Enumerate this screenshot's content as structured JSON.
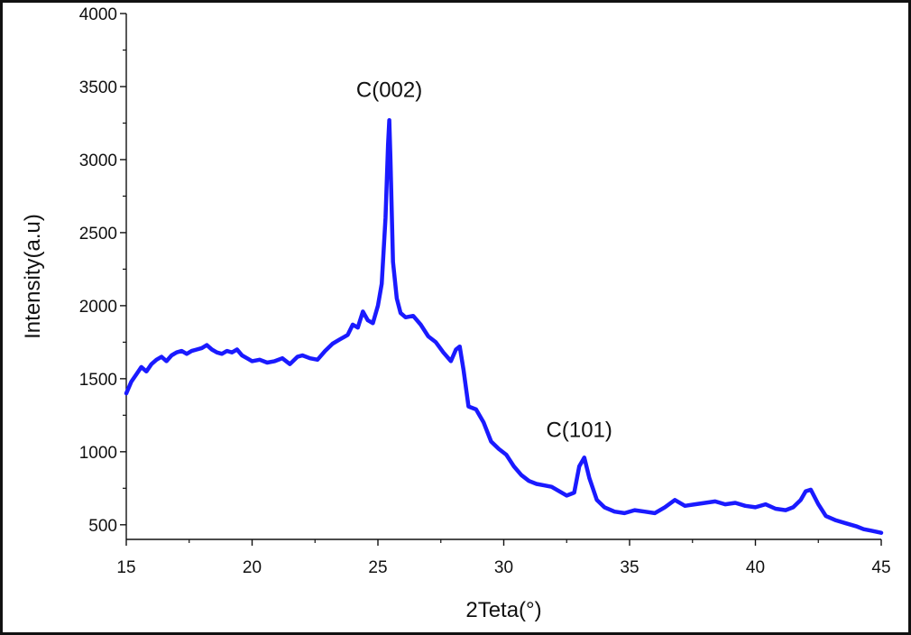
{
  "chart_data": {
    "type": "line",
    "title": "",
    "xlabel": "2Teta(°)",
    "ylabel": "Intensity(a.u)",
    "xlim": [
      15,
      45
    ],
    "ylim": [
      400,
      4000
    ],
    "x_ticks": [
      15,
      20,
      25,
      30,
      35,
      40,
      45
    ],
    "y_ticks": [
      500,
      1000,
      1500,
      2000,
      2500,
      3000,
      3500,
      4000
    ],
    "grid": false,
    "line_color": "#1a1aff",
    "series": [
      {
        "x": [
          15.0,
          15.2,
          15.4,
          15.6,
          15.8,
          16.0,
          16.2,
          16.4,
          16.6,
          16.8,
          17.0,
          17.2,
          17.4,
          17.6,
          17.8,
          18.0,
          18.2,
          18.4,
          18.6,
          18.8,
          19.0,
          19.2,
          19.4,
          19.6,
          19.8,
          20.0,
          20.3,
          20.6,
          20.9,
          21.2,
          21.5,
          21.8,
          22.0,
          22.3,
          22.6,
          22.9,
          23.2,
          23.5,
          23.8,
          24.0,
          24.2,
          24.4,
          24.6,
          24.8,
          25.0,
          25.15,
          25.3,
          25.4,
          25.45,
          25.5,
          25.6,
          25.75,
          25.9,
          26.1,
          26.4,
          26.7,
          27.0,
          27.3,
          27.6,
          27.9,
          28.1,
          28.25,
          28.4,
          28.6,
          28.9,
          29.2,
          29.5,
          29.8,
          30.1,
          30.4,
          30.7,
          31.0,
          31.3,
          31.6,
          31.9,
          32.2,
          32.5,
          32.8,
          33.0,
          33.2,
          33.4,
          33.7,
          34.0,
          34.4,
          34.8,
          35.2,
          35.6,
          36.0,
          36.4,
          36.8,
          37.2,
          37.6,
          38.0,
          38.4,
          38.8,
          39.2,
          39.6,
          40.0,
          40.4,
          40.8,
          41.2,
          41.5,
          41.8,
          42.0,
          42.2,
          42.5,
          42.8,
          43.2,
          43.6,
          44.0,
          44.3,
          44.6,
          45.0
        ],
        "y": [
          1400,
          1480,
          1530,
          1580,
          1550,
          1600,
          1630,
          1650,
          1620,
          1660,
          1680,
          1690,
          1670,
          1690,
          1700,
          1710,
          1730,
          1700,
          1680,
          1670,
          1690,
          1680,
          1700,
          1660,
          1640,
          1620,
          1630,
          1610,
          1620,
          1640,
          1600,
          1650,
          1660,
          1640,
          1630,
          1690,
          1740,
          1770,
          1800,
          1870,
          1850,
          1960,
          1900,
          1880,
          2000,
          2150,
          2600,
          3100,
          3270,
          3000,
          2300,
          2050,
          1950,
          1920,
          1930,
          1870,
          1790,
          1750,
          1680,
          1620,
          1700,
          1720,
          1560,
          1310,
          1290,
          1200,
          1070,
          1020,
          980,
          900,
          840,
          800,
          780,
          770,
          760,
          730,
          700,
          720,
          900,
          960,
          820,
          670,
          620,
          590,
          580,
          600,
          590,
          580,
          620,
          670,
          630,
          640,
          650,
          660,
          640,
          650,
          630,
          620,
          640,
          610,
          600,
          620,
          670,
          730,
          740,
          640,
          560,
          530,
          510,
          490,
          470,
          460,
          445
        ]
      }
    ],
    "annotations": [
      {
        "text": "C(002)",
        "x": 25.45,
        "y": 3430
      },
      {
        "text": "C(101)",
        "x": 33.0,
        "y": 1100
      }
    ]
  }
}
